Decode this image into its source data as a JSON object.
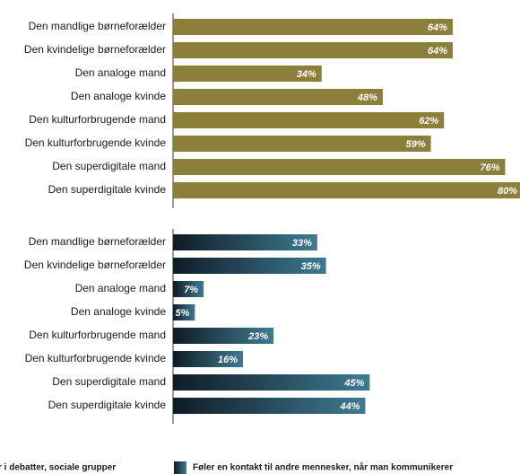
{
  "chart_data": [
    {
      "type": "bar",
      "categories": [
        "Den mandlige børneforælder",
        "Den kvindelige børneforælder",
        "Den analoge mand",
        "Den analoge kvinde",
        "Den kulturforbrugende mand",
        "Den kulturforbrugende kvinde",
        "Den superdigitale mand",
        "Den superdigitale kvinde"
      ],
      "series": [
        {
          "name": "r i debatter, sociale grupper",
          "color": [
            "#8c7e3b",
            "#8c7e3b"
          ],
          "values": [
            64,
            64,
            34,
            48,
            62,
            59,
            76,
            80
          ],
          "value_labels": [
            "64%",
            "64%",
            "34%",
            "48%",
            "62%",
            "59%",
            "76%",
            "80%"
          ]
        }
      ],
      "xlim": [
        0,
        80
      ]
    },
    {
      "type": "bar",
      "categories": [
        "Den mandlige børneforælder",
        "Den kvindelige børneforælder",
        "Den analoge mand",
        "Den analoge kvinde",
        "Den kulturforbrugende mand",
        "Den kulturforbrugende kvinde",
        "Den superdigitale mand",
        "Den superdigitale kvinde"
      ],
      "series": [
        {
          "name": "Føler en kontakt til andre mennesker, når man kommunikerer",
          "color": [
            "#0f1c26",
            "#3f7a92"
          ],
          "values": [
            33,
            35,
            7,
            5,
            23,
            16,
            45,
            44
          ],
          "value_labels": [
            "33%",
            "35%",
            "7%",
            "5%",
            "23%",
            "16%",
            "45%",
            "44%"
          ]
        }
      ],
      "xlim": [
        0,
        80
      ]
    }
  ]
}
